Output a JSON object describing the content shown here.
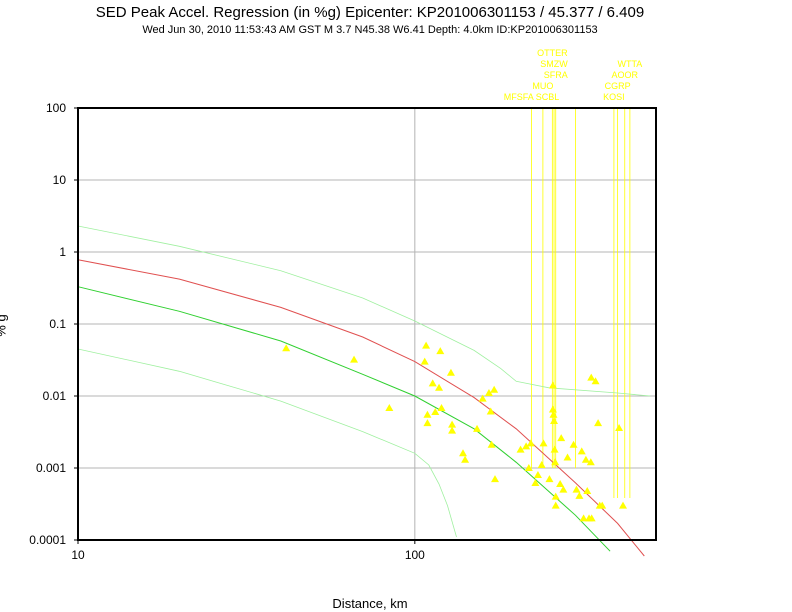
{
  "header": {
    "title": "SED Peak Accel. Regression (in %g) Epicenter: KP201006301153 / 45.377 / 6.409",
    "subtitle": "Wed Jun 30, 2010 11:53:43 AM GST   M 3.7    N45.38 W6.41    Depth: 4.0km    ID:KP201006301153"
  },
  "colors": {
    "regression": "#e05050",
    "lower_fit": "#30d030",
    "confidence_band": "#a0f0a0",
    "station_marker": "#ffff00",
    "grid": "#b4b4b4"
  },
  "chart_data": {
    "type": "scatter",
    "title": "SED Peak Accel. Regression (in %g) Epicenter: KP201006301153 / 45.377 / 6.409",
    "xlabel": "Distance, km",
    "ylabel": "% g",
    "xscale": "log",
    "yscale": "log",
    "xlim": [
      10,
      520
    ],
    "ylim": [
      0.0001,
      100
    ],
    "x_ticks": [
      {
        "value": 10,
        "label": "10"
      },
      {
        "value": 100,
        "label": "100"
      }
    ],
    "y_ticks": [
      {
        "value": 100,
        "label": "100"
      },
      {
        "value": 10,
        "label": "10"
      },
      {
        "value": 1,
        "label": "1"
      },
      {
        "value": 0.1,
        "label": "0.1"
      },
      {
        "value": 0.01,
        "label": "0.01"
      },
      {
        "value": 0.001,
        "label": "0.001"
      },
      {
        "value": 0.0001,
        "label": "0.0001"
      }
    ],
    "grid": true,
    "series": [
      {
        "points": [
          [
            41.5,
            0.046
          ],
          [
            66,
            0.032
          ],
          [
            84,
            0.0068
          ],
          [
            108,
            0.05
          ],
          [
            107,
            0.03
          ],
          [
            109,
            0.0055
          ],
          [
            109,
            0.0042
          ],
          [
            113,
            0.015
          ],
          [
            115,
            0.006
          ],
          [
            119,
            0.042
          ],
          [
            118,
            0.013
          ],
          [
            120,
            0.0068
          ],
          [
            128,
            0.021
          ],
          [
            129,
            0.004
          ],
          [
            129,
            0.0033
          ],
          [
            139,
            0.0016
          ],
          [
            141,
            0.0013
          ],
          [
            153,
            0.0035
          ],
          [
            159,
            0.0092
          ],
          [
            166,
            0.011
          ],
          [
            168,
            0.0061
          ],
          [
            169,
            0.0021
          ],
          [
            172,
            0.0122
          ],
          [
            173,
            0.0007
          ],
          [
            206,
            0.0018
          ],
          [
            214,
            0.002
          ],
          [
            218,
            0.001
          ],
          [
            221,
            0.0022
          ],
          [
            228,
            0.00062
          ],
          [
            232,
            0.0008
          ],
          [
            238,
            0.0011
          ],
          [
            241,
            0.0022
          ],
          [
            251,
            0.0007
          ],
          [
            257,
            0.014
          ],
          [
            257,
            0.0065
          ],
          [
            258,
            0.0055
          ],
          [
            259,
            0.0045
          ],
          [
            260,
            0.0018
          ],
          [
            261,
            0.0012
          ],
          [
            262,
            0.0004
          ],
          [
            262,
            0.0003
          ],
          [
            270,
            0.0006
          ],
          [
            272,
            0.0026
          ],
          [
            276,
            0.0005
          ],
          [
            284,
            0.0014
          ],
          [
            296,
            0.0021
          ],
          [
            302,
            0.0005
          ],
          [
            308,
            0.00041
          ],
          [
            313,
            0.0017
          ],
          [
            317,
            0.0002
          ],
          [
            322,
            0.0013
          ],
          [
            325,
            0.00048
          ],
          [
            329,
            0.0002
          ],
          [
            333,
            0.0012
          ],
          [
            335,
            0.0002
          ],
          [
            334,
            0.018
          ],
          [
            344,
            0.016
          ],
          [
            350,
            0.0042
          ],
          [
            354,
            0.0003
          ],
          [
            360,
            0.0003
          ],
          [
            404,
            0.0036
          ],
          [
            415,
            0.0003
          ]
        ]
      }
    ],
    "lines": [
      {
        "role": "upper",
        "points": [
          [
            10,
            0.78
          ],
          [
            20,
            0.42
          ],
          [
            40,
            0.17
          ],
          [
            70,
            0.066
          ],
          [
            100,
            0.03
          ],
          [
            150,
            0.0095
          ],
          [
            200,
            0.0035
          ],
          [
            300,
            0.00062
          ],
          [
            400,
            0.00017
          ],
          [
            480,
            6e-05
          ]
        ]
      },
      {
        "role": "lower",
        "points": [
          [
            10,
            0.33
          ],
          [
            20,
            0.15
          ],
          [
            40,
            0.058
          ],
          [
            70,
            0.02
          ],
          [
            100,
            0.01
          ],
          [
            150,
            0.0035
          ],
          [
            200,
            0.0012
          ],
          [
            300,
            0.00022
          ],
          [
            380,
            7e-05
          ]
        ]
      },
      {
        "role": "band-high",
        "points": [
          [
            10,
            2.3
          ],
          [
            20,
            1.2
          ],
          [
            40,
            0.55
          ],
          [
            70,
            0.23
          ],
          [
            100,
            0.11
          ],
          [
            150,
            0.043
          ],
          [
            180,
            0.024
          ],
          [
            200,
            0.016
          ],
          [
            250,
            0.013
          ],
          [
            400,
            0.011
          ],
          [
            500,
            0.01
          ]
        ]
      },
      {
        "role": "band-low",
        "points": [
          [
            10,
            0.045
          ],
          [
            20,
            0.022
          ],
          [
            40,
            0.0085
          ],
          [
            70,
            0.0032
          ],
          [
            100,
            0.0016
          ],
          [
            110,
            0.0011
          ],
          [
            118,
            0.0006
          ],
          [
            125,
            0.0003
          ],
          [
            133,
            0.00011
          ]
        ]
      }
    ],
    "stations": [
      {
        "name": "OTTER",
        "distance_km": 256
      },
      {
        "name": "SMZW",
        "distance_km": 259
      },
      {
        "name": "SFRA",
        "distance_km": 262
      },
      {
        "name": "MUO",
        "distance_km": 240
      },
      {
        "name": "MFSFA",
        "distance_km": 222
      },
      {
        "name": "SCBL",
        "distance_km": 300
      },
      {
        "name": "WTTA",
        "distance_km": 435
      },
      {
        "name": "AOOR",
        "distance_km": 420
      },
      {
        "name": "CGRP",
        "distance_km": 400
      },
      {
        "name": "KOSI",
        "distance_km": 390
      }
    ]
  }
}
